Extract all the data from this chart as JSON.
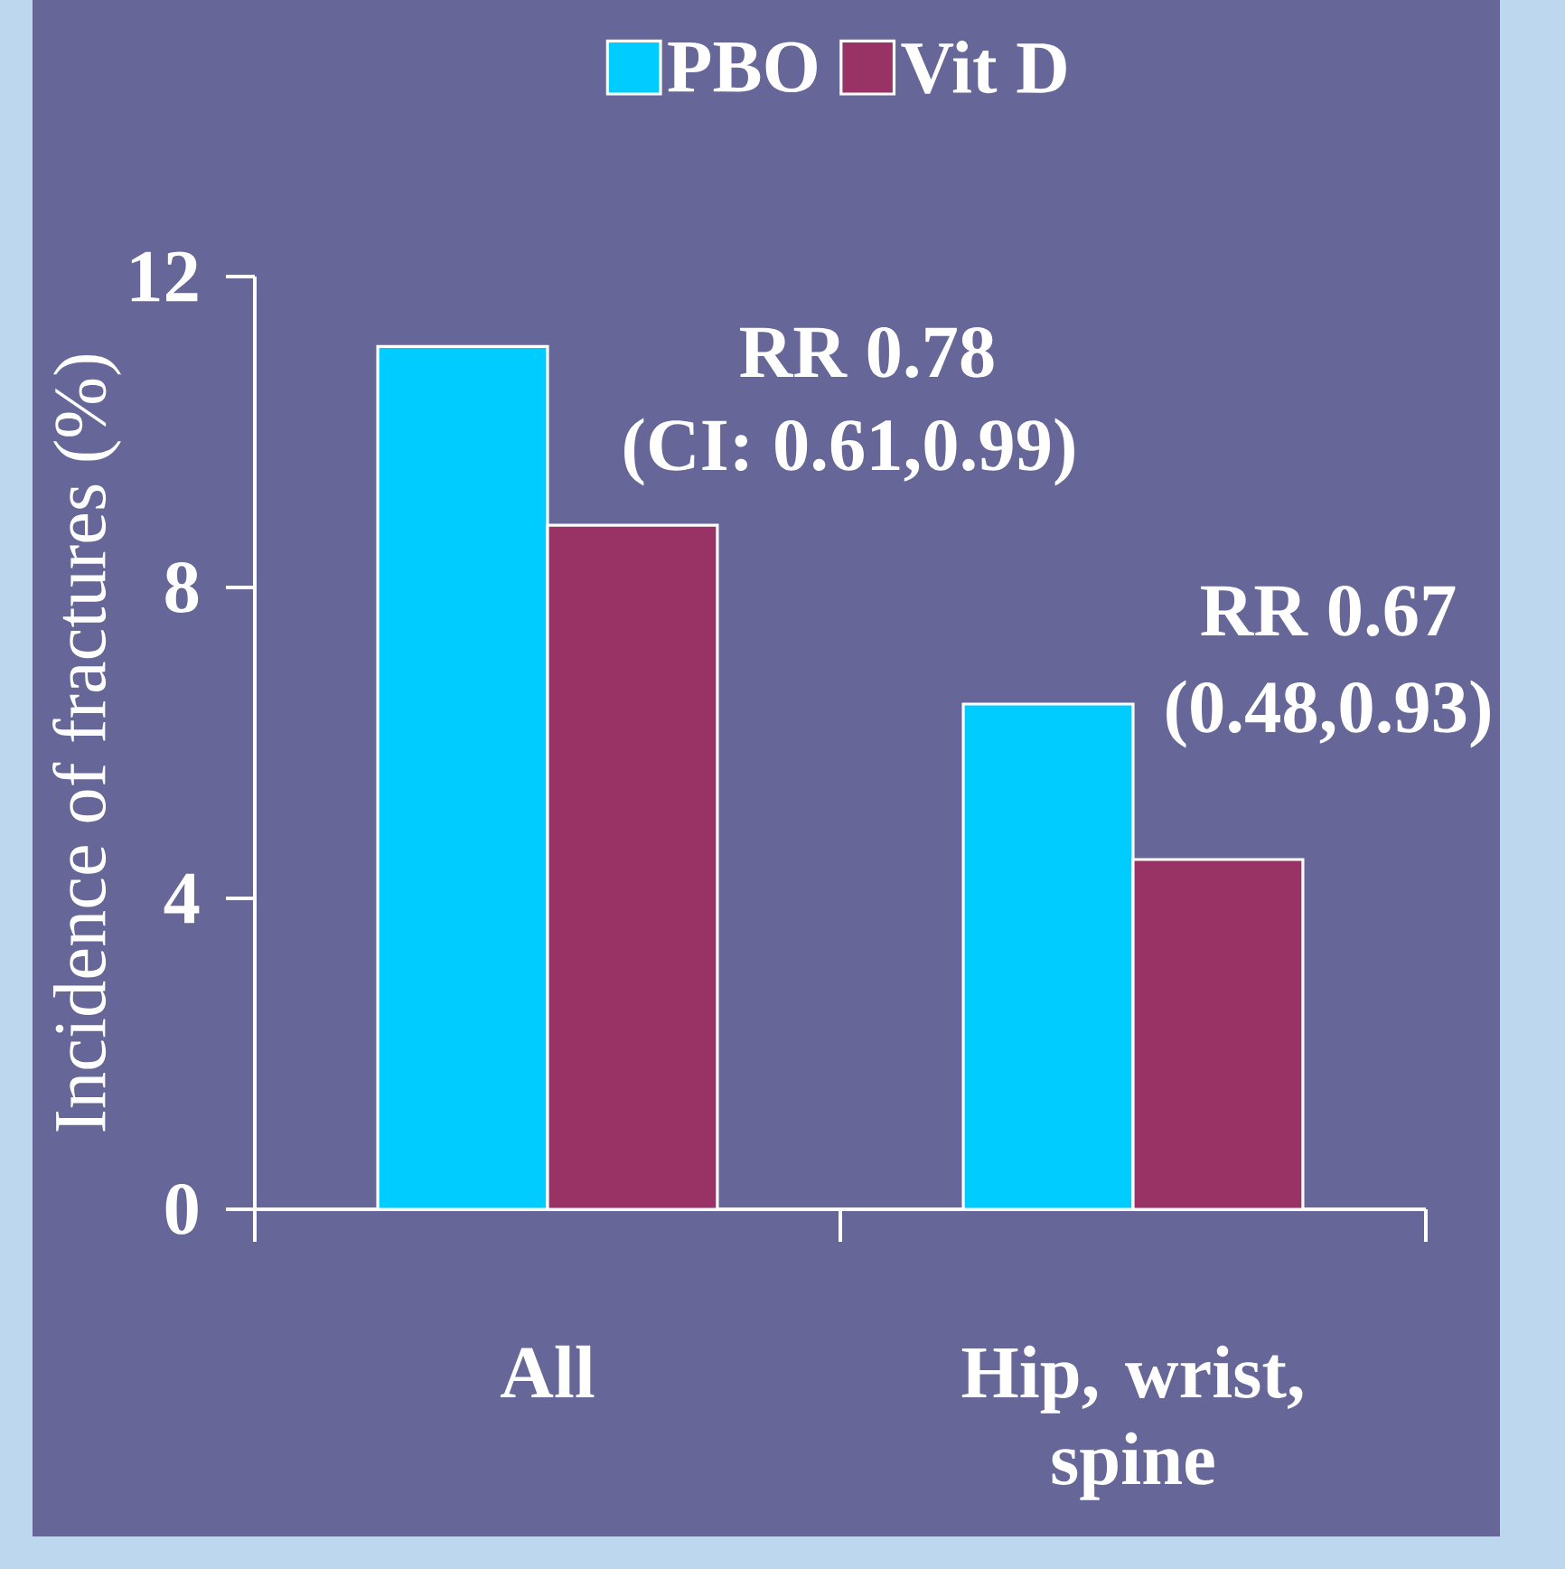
{
  "chart_data": {
    "type": "bar",
    "ylabel": "Incidence of fractures (%)",
    "categories": [
      "All",
      "Hip, wrist, spine"
    ],
    "series": [
      {
        "name": "PBO",
        "color": "#00ccff",
        "values": [
          11.1,
          6.5
        ]
      },
      {
        "name": "Vit D",
        "color": "#993366",
        "values": [
          8.8,
          4.5
        ]
      }
    ],
    "ylim": [
      0,
      12
    ],
    "yticks": [
      0,
      4,
      8,
      12
    ],
    "legend": "top",
    "annotations": [
      "RR 0.78",
      "(CI: 0.61,0.99)",
      "RR 0.67",
      "(0.48,0.93)"
    ]
  }
}
